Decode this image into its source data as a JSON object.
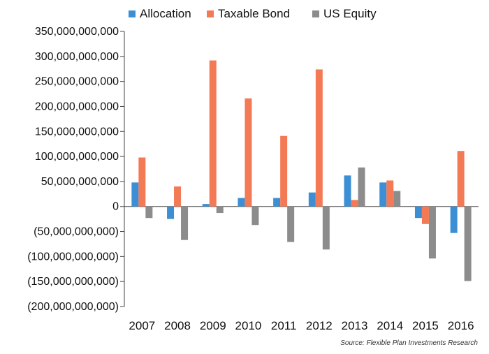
{
  "chart_data": {
    "type": "bar",
    "categories": [
      "2007",
      "2008",
      "2009",
      "2010",
      "2011",
      "2012",
      "2013",
      "2014",
      "2015",
      "2016"
    ],
    "series": [
      {
        "name": "Allocation",
        "color": "#3c8fd4",
        "values": [
          48000000000,
          -25000000000,
          5000000000,
          17000000000,
          17000000000,
          28000000000,
          62000000000,
          48000000000,
          -23000000000,
          -53000000000
        ]
      },
      {
        "name": "Taxable Bond",
        "color": "#f47a55",
        "values": [
          98000000000,
          40000000000,
          292000000000,
          216000000000,
          141000000000,
          274000000000,
          13000000000,
          52000000000,
          -35000000000,
          111000000000
        ]
      },
      {
        "name": "US Equity",
        "color": "#8c8c8c",
        "values": [
          -23000000000,
          -67000000000,
          -13000000000,
          -37000000000,
          -71000000000,
          -86000000000,
          78000000000,
          31000000000,
          -104000000000,
          -149000000000
        ]
      }
    ],
    "ylim": [
      -200000000000,
      350000000000
    ],
    "yticks": [
      350000000000,
      300000000000,
      250000000000,
      200000000000,
      150000000000,
      100000000000,
      50000000000,
      0,
      -50000000000,
      -100000000000,
      -150000000000,
      -200000000000
    ],
    "ytick_labels": [
      "350,000,000,000",
      "300,000,000,000",
      "250,000,000,000",
      "200,000,000,000",
      "150,000,000,000",
      "100,000,000,000",
      "50,000,000,000",
      "0",
      "(50,000,000,000)",
      "(100,000,000,000)",
      "(150,000,000,000)",
      "(200,000,000,000)"
    ],
    "legend_position": "top",
    "grid": false
  },
  "source_note": "Source: Flexible Plan Investments Research"
}
